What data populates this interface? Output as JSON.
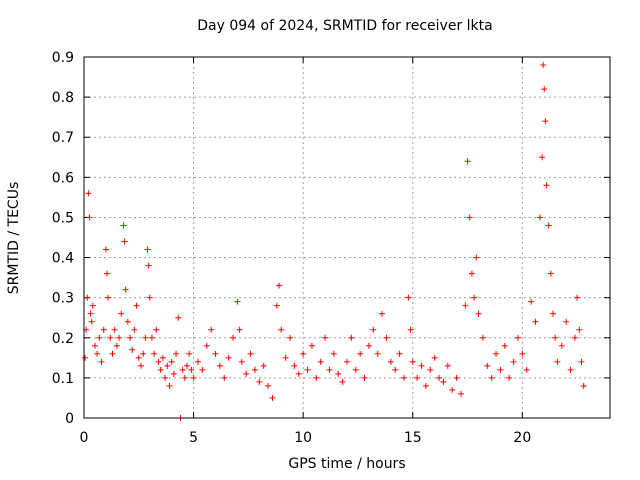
{
  "chart_data": {
    "type": "scatter",
    "title": "Day 094 of 2024, SRMTID for receiver lkta",
    "xlabel": "GPS time / hours",
    "ylabel": "SRMTID / TECUs",
    "xlim": [
      0,
      24
    ],
    "ylim": [
      0,
      0.9
    ],
    "xticks": [
      0,
      5,
      10,
      15,
      20
    ],
    "yticks": [
      0,
      0.1,
      0.2,
      0.3,
      0.4,
      0.5,
      0.6,
      0.7,
      0.8,
      0.9
    ],
    "grid": true,
    "marker": "+",
    "color": "#ff0000",
    "series": [
      {
        "name": "SRMTID",
        "points": [
          [
            0.05,
            0.15
          ],
          [
            0.1,
            0.22
          ],
          [
            0.15,
            0.3
          ],
          [
            0.2,
            0.56
          ],
          [
            0.25,
            0.5
          ],
          [
            0.3,
            0.26
          ],
          [
            0.35,
            0.24
          ],
          [
            0.4,
            0.28
          ],
          [
            0.5,
            0.18
          ],
          [
            0.6,
            0.16
          ],
          [
            0.7,
            0.2
          ],
          [
            0.8,
            0.14
          ],
          [
            0.9,
            0.22
          ],
          [
            1.0,
            0.42
          ],
          [
            1.05,
            0.36
          ],
          [
            1.1,
            0.3
          ],
          [
            1.2,
            0.2
          ],
          [
            1.3,
            0.16
          ],
          [
            1.4,
            0.22
          ],
          [
            1.5,
            0.18
          ],
          [
            1.6,
            0.2
          ],
          [
            1.7,
            0.26
          ],
          [
            1.8,
            0.48
          ],
          [
            1.85,
            0.44
          ],
          [
            1.9,
            0.32
          ],
          [
            2.0,
            0.24
          ],
          [
            2.1,
            0.2
          ],
          [
            2.2,
            0.17
          ],
          [
            2.3,
            0.22
          ],
          [
            2.4,
            0.28
          ],
          [
            2.5,
            0.15
          ],
          [
            2.6,
            0.13
          ],
          [
            2.7,
            0.16
          ],
          [
            2.8,
            0.2
          ],
          [
            2.9,
            0.42
          ],
          [
            2.95,
            0.38
          ],
          [
            3.0,
            0.3
          ],
          [
            3.1,
            0.2
          ],
          [
            3.2,
            0.16
          ],
          [
            3.3,
            0.22
          ],
          [
            3.4,
            0.14
          ],
          [
            3.5,
            0.12
          ],
          [
            3.6,
            0.15
          ],
          [
            3.7,
            0.1
          ],
          [
            3.8,
            0.13
          ],
          [
            3.9,
            0.08
          ],
          [
            4.0,
            0.14
          ],
          [
            4.1,
            0.11
          ],
          [
            4.2,
            0.16
          ],
          [
            4.3,
            0.25
          ],
          [
            4.4,
            0.0
          ],
          [
            4.5,
            0.12
          ],
          [
            4.6,
            0.1
          ],
          [
            4.7,
            0.13
          ],
          [
            4.8,
            0.16
          ],
          [
            4.9,
            0.12
          ],
          [
            5.0,
            0.1
          ],
          [
            5.2,
            0.14
          ],
          [
            5.4,
            0.12
          ],
          [
            5.6,
            0.18
          ],
          [
            5.8,
            0.22
          ],
          [
            6.0,
            0.16
          ],
          [
            6.2,
            0.13
          ],
          [
            6.4,
            0.1
          ],
          [
            6.6,
            0.15
          ],
          [
            6.8,
            0.2
          ],
          [
            7.0,
            0.29
          ],
          [
            7.1,
            0.22
          ],
          [
            7.2,
            0.14
          ],
          [
            7.4,
            0.11
          ],
          [
            7.6,
            0.16
          ],
          [
            7.8,
            0.12
          ],
          [
            8.0,
            0.09
          ],
          [
            8.2,
            0.13
          ],
          [
            8.4,
            0.08
          ],
          [
            8.6,
            0.05
          ],
          [
            8.8,
            0.28
          ],
          [
            8.9,
            0.33
          ],
          [
            9.0,
            0.22
          ],
          [
            9.2,
            0.15
          ],
          [
            9.4,
            0.2
          ],
          [
            9.6,
            0.13
          ],
          [
            9.8,
            0.11
          ],
          [
            10.0,
            0.16
          ],
          [
            10.2,
            0.12
          ],
          [
            10.4,
            0.18
          ],
          [
            10.6,
            0.1
          ],
          [
            10.8,
            0.14
          ],
          [
            11.0,
            0.2
          ],
          [
            11.2,
            0.12
          ],
          [
            11.4,
            0.16
          ],
          [
            11.6,
            0.11
          ],
          [
            11.8,
            0.09
          ],
          [
            12.0,
            0.14
          ],
          [
            12.2,
            0.2
          ],
          [
            12.4,
            0.12
          ],
          [
            12.6,
            0.16
          ],
          [
            12.8,
            0.1
          ],
          [
            13.0,
            0.18
          ],
          [
            13.2,
            0.22
          ],
          [
            13.4,
            0.16
          ],
          [
            13.6,
            0.26
          ],
          [
            13.8,
            0.2
          ],
          [
            14.0,
            0.14
          ],
          [
            14.2,
            0.12
          ],
          [
            14.4,
            0.16
          ],
          [
            14.6,
            0.1
          ],
          [
            14.8,
            0.3
          ],
          [
            14.9,
            0.22
          ],
          [
            15.0,
            0.14
          ],
          [
            15.2,
            0.1
          ],
          [
            15.4,
            0.13
          ],
          [
            15.6,
            0.08
          ],
          [
            15.8,
            0.12
          ],
          [
            16.0,
            0.15
          ],
          [
            16.2,
            0.1
          ],
          [
            16.4,
            0.09
          ],
          [
            16.6,
            0.13
          ],
          [
            16.8,
            0.07
          ],
          [
            17.0,
            0.1
          ],
          [
            17.2,
            0.06
          ],
          [
            17.4,
            0.28
          ],
          [
            17.5,
            0.64
          ],
          [
            17.6,
            0.5
          ],
          [
            17.7,
            0.36
          ],
          [
            17.8,
            0.3
          ],
          [
            17.9,
            0.4
          ],
          [
            18.0,
            0.26
          ],
          [
            18.2,
            0.2
          ],
          [
            18.4,
            0.13
          ],
          [
            18.6,
            0.1
          ],
          [
            18.8,
            0.16
          ],
          [
            19.0,
            0.12
          ],
          [
            19.2,
            0.18
          ],
          [
            19.4,
            0.1
          ],
          [
            19.6,
            0.14
          ],
          [
            19.8,
            0.2
          ],
          [
            20.0,
            0.16
          ],
          [
            20.2,
            0.12
          ],
          [
            20.4,
            0.29
          ],
          [
            20.6,
            0.24
          ],
          [
            20.8,
            0.5
          ],
          [
            20.9,
            0.65
          ],
          [
            20.95,
            0.88
          ],
          [
            21.0,
            0.82
          ],
          [
            21.05,
            0.74
          ],
          [
            21.1,
            0.58
          ],
          [
            21.2,
            0.48
          ],
          [
            21.3,
            0.36
          ],
          [
            21.4,
            0.26
          ],
          [
            21.5,
            0.2
          ],
          [
            21.6,
            0.14
          ],
          [
            21.8,
            0.18
          ],
          [
            22.0,
            0.24
          ],
          [
            22.2,
            0.12
          ],
          [
            22.4,
            0.2
          ],
          [
            22.5,
            0.3
          ],
          [
            22.6,
            0.22
          ],
          [
            22.7,
            0.14
          ],
          [
            22.8,
            0.08
          ]
        ]
      }
    ]
  }
}
